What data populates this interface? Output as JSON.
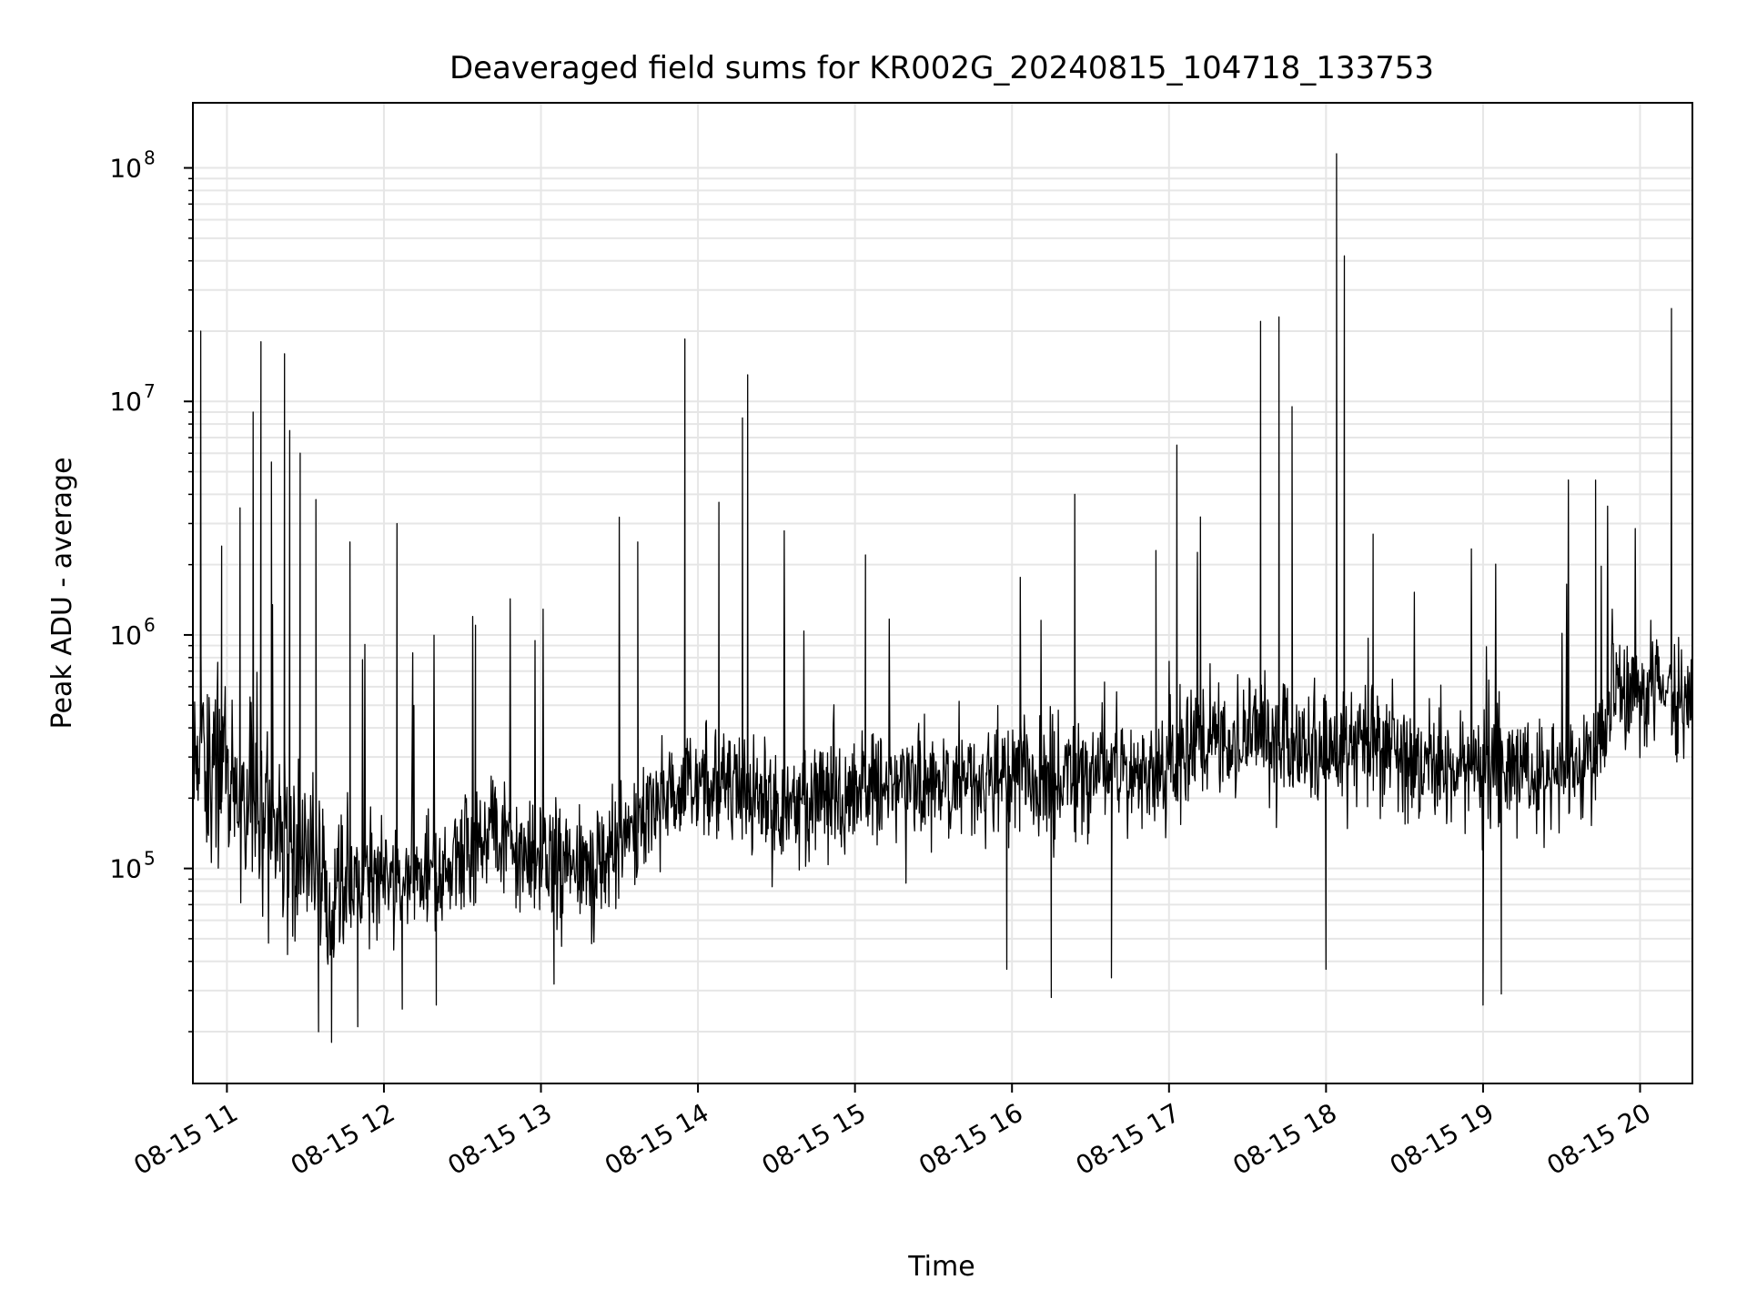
{
  "chart_data": {
    "type": "line",
    "title": "Deaveraged field sums for KR002G_20240815_104718_133753",
    "xlabel": "Time",
    "ylabel": "Peak ADU - average",
    "yscale": "log",
    "grid": true,
    "legend": "none",
    "line_color": "#000000",
    "xlim": [
      "2024-08-15 10:47",
      "2024-08-15 20:20"
    ],
    "ylim": [
      12000,
      190000000
    ],
    "x_ticks": [
      {
        "value": "2024-08-15 11:00",
        "label": "08-15 11"
      },
      {
        "value": "2024-08-15 12:00",
        "label": "08-15 12"
      },
      {
        "value": "2024-08-15 13:00",
        "label": "08-15 13"
      },
      {
        "value": "2024-08-15 14:00",
        "label": "08-15 14"
      },
      {
        "value": "2024-08-15 15:00",
        "label": "08-15 15"
      },
      {
        "value": "2024-08-15 16:00",
        "label": "08-15 16"
      },
      {
        "value": "2024-08-15 17:00",
        "label": "08-15 17"
      },
      {
        "value": "2024-08-15 18:00",
        "label": "08-15 18"
      },
      {
        "value": "2024-08-15 19:00",
        "label": "08-15 19"
      },
      {
        "value": "2024-08-15 20:00",
        "label": "08-15 20"
      }
    ],
    "y_ticks": [
      {
        "value": 100000,
        "base": "10",
        "exp": "5"
      },
      {
        "value": 1000000,
        "base": "10",
        "exp": "6"
      },
      {
        "value": 10000000,
        "base": "10",
        "exp": "7"
      },
      {
        "value": 100000000,
        "base": "10",
        "exp": "8"
      }
    ],
    "baseline": [
      {
        "x": "2024-08-15 10:47",
        "y": 350000
      },
      {
        "x": "2024-08-15 11:00",
        "y": 250000
      },
      {
        "x": "2024-08-15 11:20",
        "y": 150000
      },
      {
        "x": "2024-08-15 11:40",
        "y": 80000
      },
      {
        "x": "2024-08-15 12:00",
        "y": 90000
      },
      {
        "x": "2024-08-15 12:20",
        "y": 100000
      },
      {
        "x": "2024-08-15 12:40",
        "y": 140000
      },
      {
        "x": "2024-08-15 13:00",
        "y": 110000
      },
      {
        "x": "2024-08-15 13:20",
        "y": 100000
      },
      {
        "x": "2024-08-15 13:40",
        "y": 180000
      },
      {
        "x": "2024-08-15 14:00",
        "y": 240000
      },
      {
        "x": "2024-08-15 14:30",
        "y": 180000
      },
      {
        "x": "2024-08-15 15:00",
        "y": 220000
      },
      {
        "x": "2024-08-15 15:30",
        "y": 240000
      },
      {
        "x": "2024-08-15 16:00",
        "y": 250000
      },
      {
        "x": "2024-08-15 16:30",
        "y": 240000
      },
      {
        "x": "2024-08-15 17:00",
        "y": 300000
      },
      {
        "x": "2024-08-15 17:30",
        "y": 340000
      },
      {
        "x": "2024-08-15 18:00",
        "y": 320000
      },
      {
        "x": "2024-08-15 18:30",
        "y": 300000
      },
      {
        "x": "2024-08-15 19:00",
        "y": 260000
      },
      {
        "x": "2024-08-15 19:30",
        "y": 250000
      },
      {
        "x": "2024-08-15 19:45",
        "y": 300000
      },
      {
        "x": "2024-08-15 19:50",
        "y": 650000
      },
      {
        "x": "2024-08-15 20:00",
        "y": 550000
      },
      {
        "x": "2024-08-15 20:20",
        "y": 520000
      }
    ],
    "spikes": [
      {
        "x": "2024-08-15 10:50",
        "y": 20000000
      },
      {
        "x": "2024-08-15 10:58",
        "y": 2400000
      },
      {
        "x": "2024-08-15 11:05",
        "y": 3500000
      },
      {
        "x": "2024-08-15 11:10",
        "y": 9000000
      },
      {
        "x": "2024-08-15 11:13",
        "y": 18000000
      },
      {
        "x": "2024-08-15 11:17",
        "y": 5500000
      },
      {
        "x": "2024-08-15 11:22",
        "y": 16000000
      },
      {
        "x": "2024-08-15 11:24",
        "y": 7500000
      },
      {
        "x": "2024-08-15 11:28",
        "y": 6000000
      },
      {
        "x": "2024-08-15 11:34",
        "y": 3800000
      },
      {
        "x": "2024-08-15 11:47",
        "y": 2500000
      },
      {
        "x": "2024-08-15 12:05",
        "y": 3000000
      },
      {
        "x": "2024-08-15 12:35",
        "y": 1100000
      },
      {
        "x": "2024-08-15 13:37",
        "y": 2500000
      },
      {
        "x": "2024-08-15 13:55",
        "y": 18500000
      },
      {
        "x": "2024-08-15 14:08",
        "y": 3700000
      },
      {
        "x": "2024-08-15 14:17",
        "y": 8500000
      },
      {
        "x": "2024-08-15 14:19",
        "y": 13000000
      },
      {
        "x": "2024-08-15 15:04",
        "y": 2200000
      },
      {
        "x": "2024-08-15 16:24",
        "y": 4000000
      },
      {
        "x": "2024-08-15 16:55",
        "y": 2300000
      },
      {
        "x": "2024-08-15 17:03",
        "y": 6500000
      },
      {
        "x": "2024-08-15 17:12",
        "y": 3200000
      },
      {
        "x": "2024-08-15 17:35",
        "y": 22000000
      },
      {
        "x": "2024-08-15 17:42",
        "y": 23000000
      },
      {
        "x": "2024-08-15 17:47",
        "y": 9500000
      },
      {
        "x": "2024-08-15 18:04",
        "y": 115000000
      },
      {
        "x": "2024-08-15 18:07",
        "y": 42000000
      },
      {
        "x": "2024-08-15 18:18",
        "y": 2700000
      },
      {
        "x": "2024-08-15 19:43",
        "y": 4600000
      },
      {
        "x": "2024-08-15 20:12",
        "y": 25000000
      }
    ],
    "dips": [
      {
        "x": "2024-08-15 11:40",
        "y": 18000
      },
      {
        "x": "2024-08-15 11:35",
        "y": 20000
      },
      {
        "x": "2024-08-15 11:50",
        "y": 21000
      },
      {
        "x": "2024-08-15 12:07",
        "y": 25000
      },
      {
        "x": "2024-08-15 12:20",
        "y": 26000
      },
      {
        "x": "2024-08-15 13:05",
        "y": 32000
      },
      {
        "x": "2024-08-15 15:58",
        "y": 37000
      },
      {
        "x": "2024-08-15 16:15",
        "y": 28000
      },
      {
        "x": "2024-08-15 16:38",
        "y": 34000
      },
      {
        "x": "2024-08-15 18:00",
        "y": 37000
      },
      {
        "x": "2024-08-15 19:00",
        "y": 26000
      },
      {
        "x": "2024-08-15 19:07",
        "y": 29000
      }
    ]
  }
}
